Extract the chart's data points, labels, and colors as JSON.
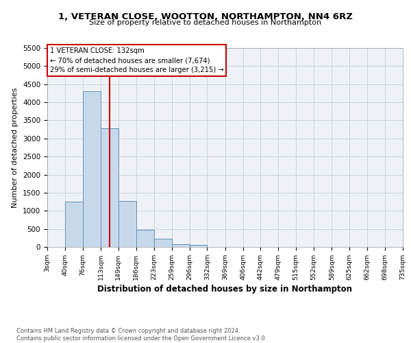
{
  "title1": "1, VETERAN CLOSE, WOOTTON, NORTHAMPTON, NN4 6RZ",
  "title2": "Size of property relative to detached houses in Northampton",
  "xlabel": "Distribution of detached houses by size in Northampton",
  "ylabel": "Number of detached properties",
  "bin_edges": [
    3,
    40,
    76,
    113,
    149,
    186,
    223,
    259,
    296,
    332,
    369,
    406,
    442,
    479,
    515,
    552,
    589,
    625,
    662,
    698,
    735
  ],
  "bar_heights": [
    0,
    1250,
    4300,
    3280,
    1280,
    480,
    220,
    80,
    50,
    0,
    0,
    0,
    0,
    0,
    0,
    0,
    0,
    0,
    0,
    0
  ],
  "bar_color": "#c8d8eb",
  "bar_edgecolor": "#6090b0",
  "bar_linewidth": 0.7,
  "property_size": 132,
  "red_line_color": "#cc0000",
  "ylim": [
    0,
    5500
  ],
  "yticks": [
    0,
    500,
    1000,
    1500,
    2000,
    2500,
    3000,
    3500,
    4000,
    4500,
    5000,
    5500
  ],
  "annotation_text": "1 VETERAN CLOSE: 132sqm\n← 70% of detached houses are smaller (7,674)\n29% of semi-detached houses are larger (3,215) →",
  "annotation_box_color": "#ffffff",
  "annotation_box_edgecolor": "#cc0000",
  "grid_color": "#c8d0d8",
  "background_color": "#eef2f7",
  "footer_text": "Contains HM Land Registry data © Crown copyright and database right 2024.\nContains public sector information licensed under the Open Government Licence v3.0.",
  "tick_labels": [
    "3sqm",
    "40sqm",
    "76sqm",
    "113sqm",
    "149sqm",
    "186sqm",
    "223sqm",
    "259sqm",
    "296sqm",
    "332sqm",
    "369sqm",
    "406sqm",
    "442sqm",
    "479sqm",
    "515sqm",
    "552sqm",
    "589sqm",
    "625sqm",
    "662sqm",
    "698sqm",
    "735sqm"
  ]
}
